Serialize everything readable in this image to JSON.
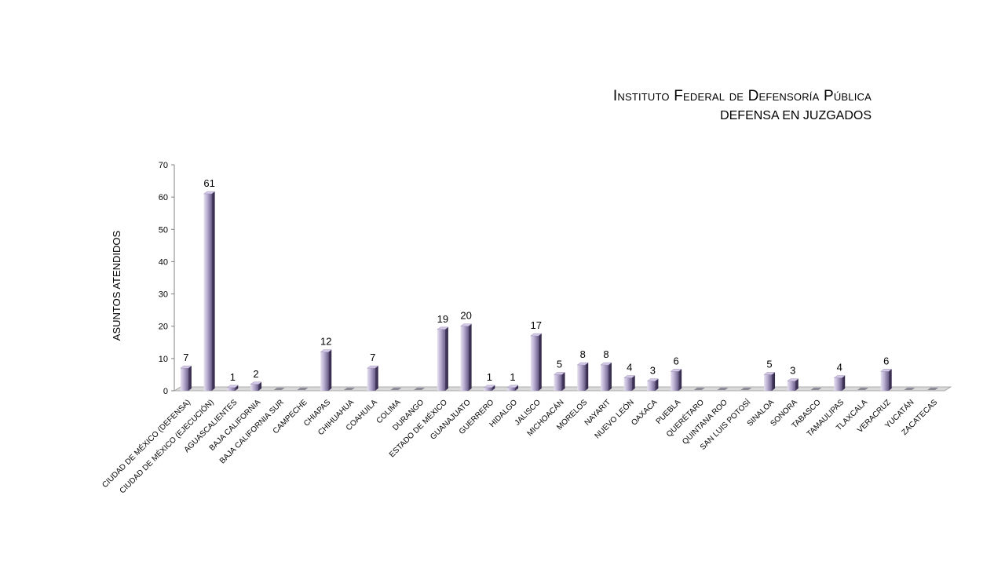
{
  "title": {
    "main": "Instituto Federal de Defensoría Pública",
    "sub": "DEFENSA EN JUZGADOS"
  },
  "chart_data": {
    "type": "bar",
    "title": "Instituto Federal de Defensoría Pública",
    "subtitle": "DEFENSA EN JUZGADOS",
    "xlabel": "",
    "ylabel": "ASUNTOS ATENDIDOS",
    "ylim": [
      0,
      70
    ],
    "yticks": [
      0,
      10,
      20,
      30,
      40,
      50,
      60,
      70
    ],
    "grid": false,
    "bar_color": "#9b8fb8",
    "categories": [
      "CIUDAD DE MÉXICO  (DEFENSA)",
      "CIUDAD DE MÉXICO  (EJECUCIÓN)",
      "AGUASCALIENTES",
      "BAJA CALIFORNIA",
      "BAJA CALIFORNIA SUR",
      "CAMPECHE",
      "CHIAPAS",
      "CHIHUAHUA",
      "COAHUILA",
      "COLIMA",
      "DURANGO",
      "ESTADO DE MÉXICO",
      "GUANAJUATO",
      "GUERRERO",
      "HIDALGO",
      "JALISCO",
      "MICHOACÁN",
      "MORELOS",
      "NAYARIT",
      "NUEVO LEÓN",
      "OAXACA",
      "PUEBLA",
      "QUERÉTARO",
      "QUINTANA ROO",
      "SAN LUIS POTOSÍ",
      "SINALOA",
      "SONORA",
      "TABASCO",
      "TAMAULIPAS",
      "TLAXCALA",
      "VERACRUZ",
      "YUCATÁN",
      "ZACATECAS"
    ],
    "values": [
      7,
      61,
      1,
      2,
      0,
      0,
      12,
      0,
      7,
      0,
      0,
      19,
      20,
      1,
      1,
      17,
      5,
      8,
      8,
      4,
      3,
      6,
      0,
      0,
      0,
      5,
      3,
      0,
      4,
      0,
      6,
      0,
      0
    ],
    "data_labels": [
      "7",
      "61",
      "1",
      "2",
      "",
      "",
      "12",
      "",
      "7",
      "",
      "",
      "19",
      "20",
      "1",
      "1",
      "17",
      "5",
      "8",
      "8",
      "4",
      "3",
      "6",
      "",
      "",
      "",
      "5",
      "3",
      "",
      "4",
      "",
      "6",
      "",
      ""
    ]
  }
}
